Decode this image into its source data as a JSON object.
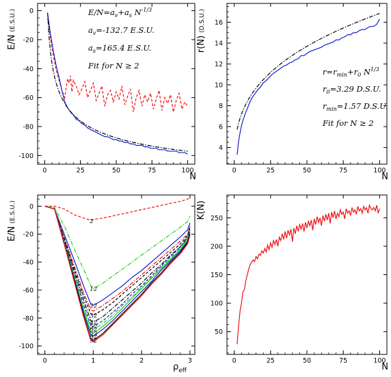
{
  "chart_data": [
    {
      "id": "tl",
      "type": "line",
      "xlabel": "N",
      "ylabel": "E/N",
      "ylabel_unit": "(E.S.U.)",
      "xlim": [
        -5,
        105
      ],
      "ylim": [
        -106,
        5
      ],
      "xticks": [
        0,
        25,
        50,
        75,
        100
      ],
      "yticks": [
        0,
        -20,
        -40,
        -60,
        -80,
        -100
      ],
      "annotations": [
        {
          "main": "E/N=a",
          "sub": "v",
          "tail": "+a",
          "sub2": "s",
          "tail2": " N",
          "sup": "-1/3"
        },
        {
          "main": "a",
          "sub": "v",
          "tail": "=-132.7 E.S.U."
        },
        {
          "main": "a",
          "sub": "s",
          "tail": "=165.4 E.S.U."
        },
        {
          "main": "Fit for N ≥ 2"
        }
      ],
      "series": [
        {
          "style": "dashed",
          "color": "#ee1111",
          "x": [
            2,
            4,
            6,
            8,
            10,
            12,
            14,
            15,
            16,
            17,
            18,
            19,
            20,
            22,
            24,
            26,
            28,
            30,
            32,
            34,
            36,
            38,
            40,
            42,
            44,
            46,
            48,
            50,
            52,
            54,
            56,
            58,
            60,
            62,
            64,
            66,
            68,
            70,
            72,
            74,
            76,
            78,
            80,
            82,
            84,
            86,
            88,
            90,
            92,
            94,
            96,
            98,
            100
          ],
          "y": [
            -5,
            -19,
            -31,
            -41,
            -48,
            -55,
            -60,
            -53,
            -47,
            -50,
            -45,
            -56,
            -48,
            -52,
            -58,
            -54,
            -49,
            -60,
            -55,
            -50,
            -62,
            -57,
            -52,
            -66,
            -58,
            -55,
            -63,
            -56,
            -61,
            -52,
            -65,
            -59,
            -54,
            -70,
            -60,
            -55,
            -66,
            -58,
            -63,
            -57,
            -68,
            -61,
            -55,
            -69,
            -60,
            -64,
            -58,
            -70,
            -62,
            -57,
            -68,
            -63,
            -66
          ]
        },
        {
          "style": "solid",
          "color": "#1122cc",
          "x": [
            2,
            4,
            6,
            8,
            10,
            12,
            14,
            16,
            18,
            20,
            22,
            24,
            26,
            28,
            30,
            32,
            34,
            36,
            38,
            40,
            42,
            44,
            46,
            48,
            50,
            52,
            54,
            56,
            58,
            60,
            62,
            64,
            66,
            68,
            70,
            72,
            74,
            76,
            78,
            80,
            82,
            84,
            86,
            88,
            90,
            92,
            94,
            96,
            98,
            100
          ],
          "y": [
            -2,
            -16,
            -28,
            -38,
            -46,
            -55,
            -63,
            -67,
            -70,
            -72,
            -75,
            -76,
            -78,
            -79,
            -81,
            -82,
            -83,
            -84,
            -85,
            -86,
            -87,
            -87,
            -88,
            -89,
            -89,
            -90,
            -90,
            -91,
            -91,
            -92,
            -92,
            -93,
            -93,
            -93,
            -94,
            -94,
            -95,
            -95,
            -95,
            -96,
            -96,
            -96,
            -97,
            -97,
            -97,
            -97,
            -98,
            -98,
            -98,
            -99
          ]
        },
        {
          "style": "dashdot",
          "color": "#000000",
          "fit": "power",
          "a": -132.7,
          "b": 165.4,
          "xrange": [
            2,
            100
          ]
        }
      ]
    },
    {
      "id": "tr",
      "type": "line",
      "xlabel": "N",
      "ylabel": "r(N)",
      "ylabel_unit": "(D.S.U.)",
      "xlim": [
        -5,
        105
      ],
      "ylim": [
        2.4,
        17.8
      ],
      "xticks": [
        0,
        25,
        50,
        75,
        100
      ],
      "yticks": [
        4,
        6,
        8,
        10,
        12,
        14,
        16
      ],
      "annotations": [
        {
          "main": "r=r",
          "sub": "min",
          "tail": "+r",
          "sub2": "0",
          "tail2": " N",
          "sup": "1/3"
        },
        {
          "main": "r",
          "sub": "0",
          "tail": "=3.29 D.S.U."
        },
        {
          "main": "r",
          "sub": "min",
          "tail": "=1.57 D.S.U."
        },
        {
          "main": "Fit for N ≥ 2"
        }
      ],
      "series": [
        {
          "style": "solid",
          "color": "#1122cc",
          "x": [
            2,
            3,
            4,
            5,
            6,
            7,
            8,
            9,
            10,
            12,
            14,
            16,
            18,
            20,
            22,
            24,
            26,
            28,
            30,
            32,
            34,
            36,
            38,
            40,
            42,
            44,
            46,
            48,
            50,
            52,
            54,
            56,
            58,
            60,
            62,
            64,
            66,
            68,
            70,
            72,
            74,
            76,
            78,
            80,
            82,
            84,
            86,
            88,
            90,
            92,
            94,
            96,
            98,
            100
          ],
          "y": [
            3.3,
            4.6,
            5.4,
            6.1,
            6.6,
            7.0,
            7.4,
            7.7,
            8.1,
            8.7,
            9.1,
            9.5,
            9.8,
            10.2,
            10.4,
            10.7,
            11.0,
            11.2,
            11.4,
            11.6,
            11.8,
            11.9,
            12.1,
            12.2,
            12.4,
            12.5,
            12.8,
            12.8,
            13.0,
            13.2,
            13.3,
            13.4,
            13.5,
            13.6,
            13.8,
            13.9,
            14.0,
            14.1,
            14.3,
            14.3,
            14.5,
            14.6,
            14.8,
            14.8,
            15.0,
            15.0,
            15.2,
            15.3,
            15.3,
            15.5,
            15.6,
            15.6,
            15.8,
            16.3
          ]
        },
        {
          "style": "dashdot",
          "color": "#000000",
          "fit": "cuberoot",
          "a": 1.57,
          "b": 3.29,
          "xrange": [
            2,
            100
          ]
        }
      ]
    },
    {
      "id": "bl",
      "type": "line",
      "xlabel": "ρ",
      "xlabel_sub": "eff",
      "ylabel": "E/N",
      "ylabel_unit": "(E.S.U.)",
      "xlim": [
        -0.15,
        3.1
      ],
      "ylim": [
        -106,
        8
      ],
      "xticks": [
        0,
        1,
        2,
        3
      ],
      "yticks": [
        0,
        -20,
        -40,
        -60,
        -80,
        -100
      ],
      "series": [
        {
          "label": "2",
          "style": "dashed",
          "color": "#ee1111",
          "y": [
            0,
            0,
            -2,
            -6,
            -8.5,
            -10,
            -9.5,
            -8.5,
            -7,
            -5.5,
            -4,
            -2.5,
            -1,
            0.5,
            2,
            3.5,
            5,
            6.5
          ]
        },
        {
          "label": "12",
          "style": "dashdot",
          "color": "#22cc22",
          "y": [
            0,
            -1,
            -14,
            -30,
            -45,
            -57,
            -59,
            -55,
            -50,
            -45,
            -40,
            -35,
            -30,
            -25,
            -20,
            -15,
            -11,
            -7
          ]
        },
        {
          "label": "22",
          "style": "solid",
          "color": "#1122cc",
          "y": [
            0,
            -2,
            -20,
            -38,
            -57,
            -70,
            -71,
            -67,
            -62,
            -57,
            -51,
            -46,
            -40,
            -34,
            -28,
            -22,
            -17,
            -12
          ]
        },
        {
          "label": "",
          "style": "dashdot",
          "color": "#ee1111",
          "y": [
            0,
            -2,
            -22,
            -42,
            -62,
            -74,
            -75,
            -71,
            -66,
            -61,
            -55,
            -49,
            -43,
            -37,
            -31,
            -25,
            -20,
            -14
          ]
        },
        {
          "label": "32",
          "style": "dashed",
          "color": "#000000",
          "y": [
            0,
            -2,
            -23,
            -44,
            -64,
            -77,
            -78,
            -74,
            -69,
            -63,
            -57,
            -51,
            -45,
            -39,
            -33,
            -27,
            -21,
            -15
          ]
        },
        {
          "label": "42",
          "style": "dashdot",
          "color": "#000000",
          "y": [
            0,
            -2,
            -24,
            -46,
            -67,
            -82,
            -83,
            -79,
            -73,
            -67,
            -61,
            -55,
            -48,
            -42,
            -35,
            -29,
            -22,
            -16
          ]
        },
        {
          "label": "52",
          "style": "dashed",
          "color": "#1122cc",
          "y": [
            0,
            -2,
            -25,
            -48,
            -70,
            -85,
            -86,
            -82,
            -76,
            -70,
            -63,
            -57,
            -50,
            -43,
            -36,
            -29,
            -23,
            -17
          ]
        },
        {
          "label": "62",
          "style": "dashdot",
          "color": "#22cc22",
          "y": [
            0,
            -2,
            -25,
            -49,
            -72,
            -87,
            -88,
            -84,
            -78,
            -71,
            -65,
            -58,
            -51,
            -44,
            -37,
            -30,
            -23,
            -17
          ]
        },
        {
          "label": "72",
          "style": "solid",
          "color": "#22cc22",
          "y": [
            0,
            -2,
            -26,
            -50,
            -74,
            -90,
            -91,
            -86,
            -80,
            -73,
            -66,
            -59,
            -52,
            -45,
            -38,
            -31,
            -24,
            -18
          ]
        },
        {
          "label": "82",
          "style": "solid",
          "color": "#1122cc",
          "y": [
            0,
            -2,
            -26,
            -51,
            -76,
            -92,
            -93,
            -88,
            -82,
            -75,
            -68,
            -61,
            -54,
            -46,
            -39,
            -32,
            -25,
            -19
          ]
        },
        {
          "label": "92",
          "style": "solid",
          "color": "#000000",
          "y": [
            0,
            -2,
            -27,
            -52,
            -78,
            -95,
            -96,
            -91,
            -84,
            -77,
            -70,
            -63,
            -55,
            -48,
            -40,
            -33,
            -26,
            -20
          ]
        },
        {
          "label": "",
          "style": "solid",
          "color": "#ee1111",
          "y": [
            0,
            -2,
            -27,
            -53,
            -79,
            -96,
            -97,
            -92,
            -85,
            -78,
            -71,
            -64,
            -56,
            -49,
            -41,
            -34,
            -27,
            -21
          ]
        }
      ],
      "x": [
        0,
        0.2,
        0.4,
        0.6,
        0.8,
        0.95,
        1.0,
        1.2,
        1.4,
        1.6,
        1.8,
        2.0,
        2.2,
        2.4,
        2.6,
        2.8,
        2.95,
        3.0
      ]
    },
    {
      "id": "br",
      "type": "line",
      "xlabel": "N",
      "ylabel": "K(N)",
      "xlim": [
        -5,
        105
      ],
      "ylim": [
        10,
        290
      ],
      "xticks": [
        0,
        25,
        50,
        75,
        100
      ],
      "yticks": [
        50,
        100,
        150,
        200,
        250
      ],
      "series": [
        {
          "style": "solid",
          "color": "#ee1111",
          "x": [
            2,
            3,
            4,
            5,
            6,
            7,
            8,
            9,
            10,
            11,
            12,
            13,
            14,
            15,
            16,
            17,
            18,
            19,
            20,
            21,
            22,
            23,
            24,
            25,
            26,
            27,
            28,
            29,
            30,
            31,
            32,
            33,
            34,
            35,
            36,
            37,
            38,
            39,
            40,
            41,
            42,
            43,
            44,
            45,
            46,
            47,
            48,
            49,
            50,
            51,
            52,
            53,
            54,
            55,
            56,
            57,
            58,
            59,
            60,
            61,
            62,
            63,
            64,
            65,
            66,
            67,
            68,
            69,
            70,
            71,
            72,
            73,
            74,
            75,
            76,
            77,
            78,
            79,
            80,
            81,
            82,
            83,
            84,
            85,
            86,
            87,
            88,
            89,
            90,
            91,
            92,
            93,
            94,
            95,
            96,
            97,
            98,
            99,
            100
          ],
          "y": [
            28,
            60,
            86,
            100,
            120,
            124,
            140,
            150,
            160,
            168,
            172,
            176,
            173,
            182,
            178,
            186,
            184,
            192,
            188,
            196,
            190,
            202,
            194,
            206,
            198,
            210,
            203,
            212,
            200,
            216,
            210,
            222,
            212,
            226,
            214,
            228,
            220,
            230,
            208,
            232,
            222,
            236,
            226,
            238,
            230,
            240,
            226,
            242,
            232,
            244,
            236,
            246,
            228,
            248,
            238,
            252,
            242,
            250,
            236,
            254,
            244,
            256,
            246,
            258,
            240,
            260,
            250,
            262,
            248,
            258,
            252,
            264,
            256,
            260,
            248,
            266,
            258,
            262,
            254,
            268,
            260,
            264,
            256,
            270,
            262,
            266,
            258,
            270,
            264,
            268,
            258,
            272,
            266,
            264,
            268,
            262,
            272,
            258,
            266
          ]
        }
      ]
    }
  ]
}
